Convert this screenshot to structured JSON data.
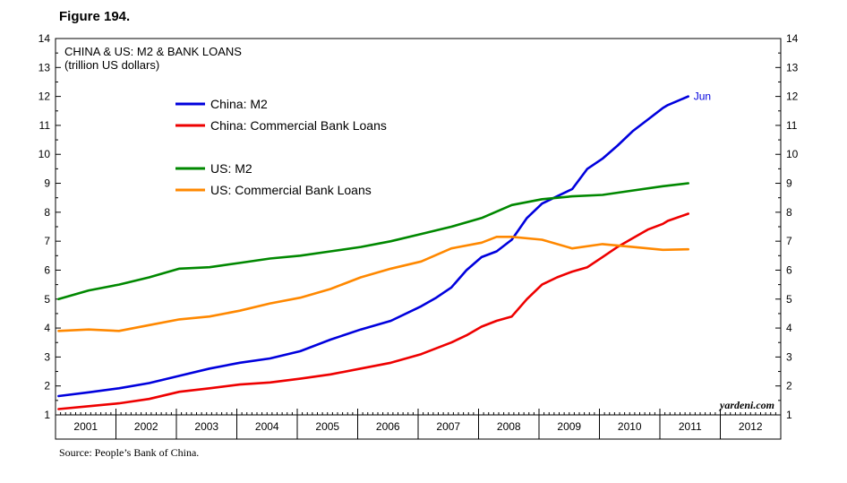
{
  "figure_label": "Figure 194.",
  "source": "Source: People’s Bank of China.",
  "credit": "yardeni.com",
  "chart_data": {
    "type": "line",
    "title": "CHINA & US: M2 & BANK LOANS",
    "subtitle": "(trillion US dollars)",
    "ylim": [
      1,
      14
    ],
    "yticks": [
      1,
      2,
      3,
      4,
      5,
      6,
      7,
      8,
      9,
      10,
      11,
      12,
      13,
      14
    ],
    "xlim": [
      2000.95,
      2012.95
    ],
    "x_labels": [
      "2001",
      "2002",
      "2003",
      "2004",
      "2005",
      "2006",
      "2007",
      "2008",
      "2009",
      "2010",
      "2011",
      "2012"
    ],
    "grid": false,
    "legend_position": "top-left",
    "end_annotation": {
      "series": "China: M2",
      "text": "Jun",
      "color": "#0000dd"
    },
    "series": [
      {
        "name": "China: M2",
        "color": "#0000dd",
        "x": [
          2001.0,
          2001.5,
          2002.0,
          2002.5,
          2003.0,
          2003.5,
          2004.0,
          2004.5,
          2005.0,
          2005.5,
          2006.0,
          2006.5,
          2007.0,
          2007.25,
          2007.5,
          2007.75,
          2008.0,
          2008.25,
          2008.5,
          2008.75,
          2009.0,
          2009.25,
          2009.5,
          2009.75,
          2010.0,
          2010.25,
          2010.5,
          2010.75,
          2011.0,
          2011.08,
          2011.42
        ],
        "values": [
          1.65,
          1.78,
          1.92,
          2.1,
          2.35,
          2.6,
          2.8,
          2.95,
          3.2,
          3.6,
          3.95,
          4.25,
          4.75,
          5.05,
          5.4,
          6.0,
          6.45,
          6.65,
          7.05,
          7.8,
          8.3,
          8.55,
          8.8,
          9.5,
          9.85,
          10.3,
          10.8,
          11.2,
          11.6,
          11.7,
          12.0
        ]
      },
      {
        "name": "China: Commercial Bank Loans",
        "color": "#ee0000",
        "x": [
          2001.0,
          2001.5,
          2002.0,
          2002.5,
          2003.0,
          2003.5,
          2004.0,
          2004.5,
          2005.0,
          2005.5,
          2006.0,
          2006.5,
          2007.0,
          2007.25,
          2007.5,
          2007.75,
          2008.0,
          2008.25,
          2008.5,
          2008.75,
          2009.0,
          2009.25,
          2009.5,
          2009.75,
          2010.0,
          2010.25,
          2010.5,
          2010.75,
          2011.0,
          2011.08,
          2011.42
        ],
        "values": [
          1.2,
          1.3,
          1.4,
          1.55,
          1.8,
          1.92,
          2.05,
          2.12,
          2.25,
          2.4,
          2.6,
          2.8,
          3.1,
          3.3,
          3.5,
          3.75,
          4.05,
          4.25,
          4.4,
          5.0,
          5.5,
          5.75,
          5.95,
          6.1,
          6.45,
          6.8,
          7.1,
          7.4,
          7.6,
          7.7,
          7.95
        ]
      },
      {
        "name": "US: M2",
        "color": "#008800",
        "x": [
          2001.0,
          2001.5,
          2002.0,
          2002.5,
          2003.0,
          2003.5,
          2004.0,
          2004.5,
          2005.0,
          2005.5,
          2006.0,
          2006.5,
          2007.0,
          2007.5,
          2008.0,
          2008.5,
          2009.0,
          2009.5,
          2010.0,
          2010.5,
          2011.0,
          2011.42
        ],
        "values": [
          5.0,
          5.3,
          5.5,
          5.75,
          6.05,
          6.1,
          6.25,
          6.4,
          6.5,
          6.65,
          6.8,
          7.0,
          7.25,
          7.5,
          7.8,
          8.25,
          8.45,
          8.55,
          8.6,
          8.75,
          8.9,
          9.0
        ]
      },
      {
        "name": "US: Commercial Bank Loans",
        "color": "#ff8800",
        "x": [
          2001.0,
          2001.5,
          2002.0,
          2002.5,
          2003.0,
          2003.5,
          2004.0,
          2004.5,
          2005.0,
          2005.5,
          2006.0,
          2006.5,
          2007.0,
          2007.5,
          2008.0,
          2008.25,
          2008.5,
          2009.0,
          2009.5,
          2010.0,
          2010.5,
          2011.0,
          2011.42
        ],
        "values": [
          3.9,
          3.95,
          3.9,
          4.1,
          4.3,
          4.4,
          4.6,
          4.85,
          5.05,
          5.35,
          5.75,
          6.05,
          6.3,
          6.75,
          6.95,
          7.15,
          7.15,
          7.05,
          6.75,
          6.9,
          6.8,
          6.7,
          6.72
        ]
      }
    ]
  }
}
